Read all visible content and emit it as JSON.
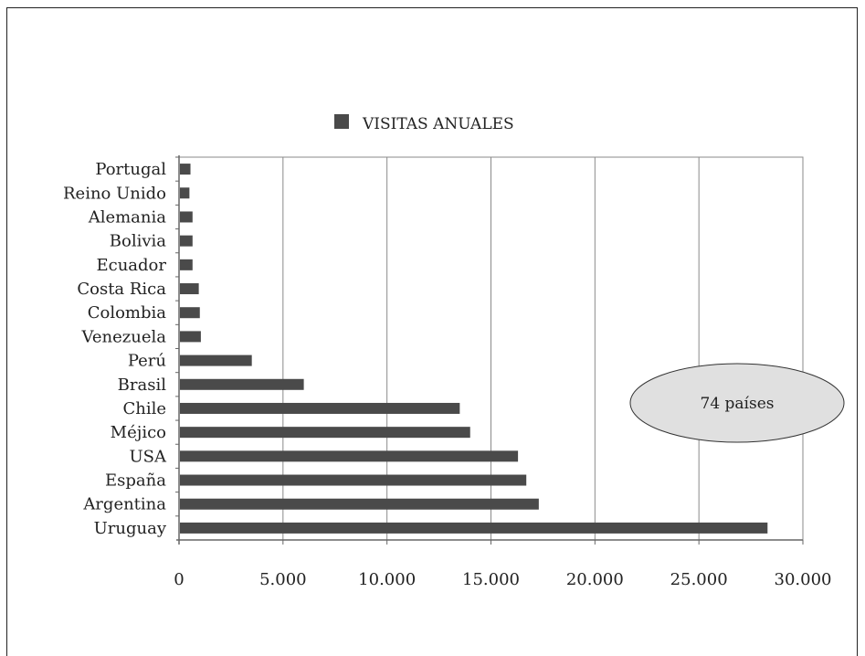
{
  "chart_data": {
    "type": "bar",
    "orientation": "horizontal",
    "title": "",
    "xlabel": "",
    "ylabel": "",
    "xlim": [
      0,
      30000
    ],
    "x_ticks": [
      0,
      5000,
      10000,
      15000,
      20000,
      25000,
      30000
    ],
    "x_tick_labels": [
      "0",
      "5.000",
      "10.000",
      "15.000",
      "20.000",
      "25.000",
      "30.000"
    ],
    "grid": "vertical",
    "legend_position": "top-center",
    "colors": {
      "bar": "#4a4a4a",
      "grid": "#8a8a8a",
      "callout_fill": "#e0e0e0"
    },
    "categories": [
      "Portugal",
      "Reino Unido",
      "Alemania",
      "Bolivia",
      "Ecuador",
      "Costa Rica",
      "Colombia",
      "Venezuela",
      "Perú",
      "Brasil",
      "Chile",
      "Méjico",
      "USA",
      "España",
      "Argentina",
      "Uruguay"
    ],
    "series": [
      {
        "name": "VISITAS ANUALES",
        "values": [
          550,
          500,
          650,
          650,
          650,
          950,
          1000,
          1050,
          3500,
          6000,
          13500,
          14000,
          16300,
          16700,
          17300,
          28300
        ]
      }
    ],
    "annotation": "74 países"
  }
}
